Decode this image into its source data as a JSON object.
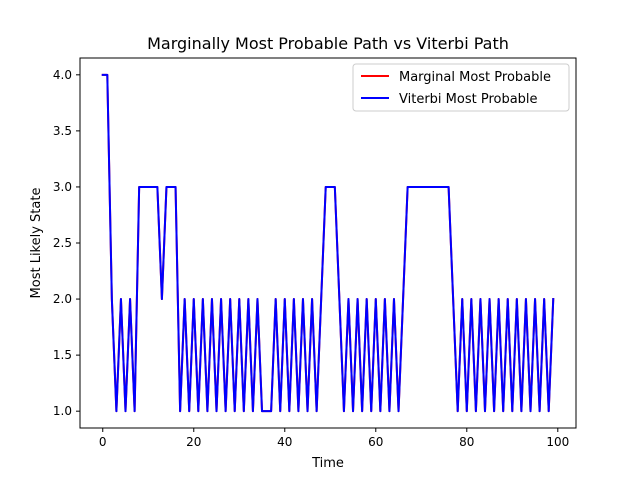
{
  "chart_data": {
    "type": "line",
    "title": "Marginally Most Probable Path vs Viterbi Path",
    "xlabel": "Time",
    "ylabel": "Most Likely State",
    "xlim": [
      -5,
      104
    ],
    "ylim": [
      0.85,
      4.15
    ],
    "xticks": [
      0,
      20,
      40,
      60,
      80,
      100
    ],
    "yticks": [
      1.0,
      1.5,
      2.0,
      2.5,
      3.0,
      3.5,
      4.0
    ],
    "grid": false,
    "legend_position": "top-right",
    "x": [
      0,
      1,
      2,
      3,
      4,
      5,
      6,
      7,
      8,
      9,
      10,
      11,
      12,
      13,
      14,
      15,
      16,
      17,
      18,
      19,
      20,
      21,
      22,
      23,
      24,
      25,
      26,
      27,
      28,
      29,
      30,
      31,
      32,
      33,
      34,
      35,
      36,
      37,
      38,
      39,
      40,
      41,
      42,
      43,
      44,
      45,
      46,
      47,
      48,
      49,
      50,
      51,
      52,
      53,
      54,
      55,
      56,
      57,
      58,
      59,
      60,
      61,
      62,
      63,
      64,
      65,
      66,
      67,
      68,
      69,
      70,
      71,
      72,
      73,
      74,
      75,
      76,
      77,
      78,
      79,
      80,
      81,
      82,
      83,
      84,
      85,
      86,
      87,
      88,
      89,
      90,
      91,
      92,
      93,
      94,
      95,
      96,
      97,
      98,
      99
    ],
    "series": [
      {
        "name": "Marginal Most Probable",
        "color": "#ff0000",
        "values": [
          4,
          4,
          2,
          1,
          2,
          1,
          2,
          1,
          3,
          3,
          3,
          3,
          3,
          2,
          3,
          3,
          3,
          1,
          2,
          1,
          2,
          1,
          2,
          1,
          2,
          1,
          2,
          1,
          2,
          1,
          2,
          1,
          2,
          1,
          2,
          1,
          1,
          1,
          2,
          1,
          2,
          1,
          2,
          1,
          2,
          1,
          2,
          1,
          2,
          3,
          3,
          3,
          2,
          1,
          2,
          1,
          2,
          1,
          2,
          1,
          2,
          1,
          2,
          1,
          2,
          1,
          2,
          3,
          3,
          3,
          3,
          3,
          3,
          3,
          3,
          3,
          3,
          2,
          1,
          2,
          1,
          2,
          1,
          2,
          1,
          2,
          1,
          2,
          1,
          2,
          1,
          2,
          1,
          2,
          1,
          2,
          1,
          2,
          1,
          2
        ]
      },
      {
        "name": "Viterbi Most Probable",
        "color": "#0000ff",
        "values": [
          4,
          4,
          2,
          1,
          2,
          1,
          2,
          1,
          3,
          3,
          3,
          3,
          3,
          2,
          3,
          3,
          3,
          1,
          2,
          1,
          2,
          1,
          2,
          1,
          2,
          1,
          2,
          1,
          2,
          1,
          2,
          1,
          2,
          1,
          2,
          1,
          1,
          1,
          2,
          1,
          2,
          1,
          2,
          1,
          2,
          1,
          2,
          1,
          2,
          3,
          3,
          3,
          2,
          1,
          2,
          1,
          2,
          1,
          2,
          1,
          2,
          1,
          2,
          1,
          2,
          1,
          2,
          3,
          3,
          3,
          3,
          3,
          3,
          3,
          3,
          3,
          3,
          2,
          1,
          2,
          1,
          2,
          1,
          2,
          1,
          2,
          1,
          2,
          1,
          2,
          1,
          2,
          1,
          2,
          1,
          2,
          1,
          2,
          1,
          2
        ]
      }
    ]
  }
}
